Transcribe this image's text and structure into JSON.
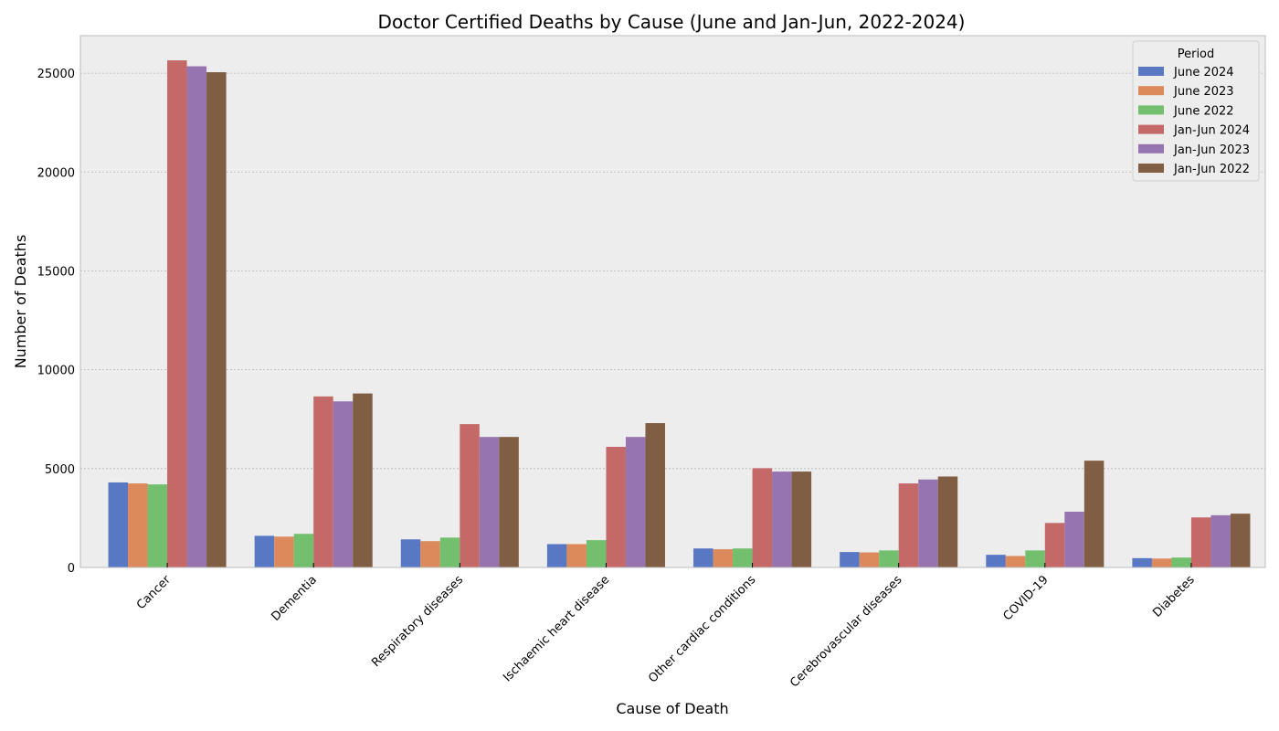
{
  "chart_data": {
    "type": "bar",
    "title": "Doctor Certified Deaths by Cause (June and Jan-Jun, 2022-2024)",
    "xlabel": "Cause of Death",
    "ylabel": "Number of Deaths",
    "ylim": [
      0,
      26900
    ],
    "yticks": [
      0,
      5000,
      10000,
      15000,
      20000,
      25000
    ],
    "grid": true,
    "legend": {
      "title": "Period",
      "position": "top-right"
    },
    "categories": [
      "Cancer",
      "Dementia",
      "Respiratory diseases",
      "Ischaemic heart disease",
      "Other cardiac conditions",
      "Cerebrovascular diseases",
      "COVID-19",
      "Diabetes"
    ],
    "series": [
      {
        "name": "June 2024",
        "color": "#5878c4",
        "values": [
          4300,
          1600,
          1420,
          1180,
          960,
          780,
          640,
          470
        ]
      },
      {
        "name": "June 2023",
        "color": "#dc8a5c",
        "values": [
          4250,
          1560,
          1330,
          1180,
          920,
          760,
          580,
          450
        ]
      },
      {
        "name": "June 2022",
        "color": "#72c06e",
        "values": [
          4200,
          1700,
          1510,
          1380,
          960,
          860,
          860,
          500
        ]
      },
      {
        "name": "Jan-Jun 2024",
        "color": "#c46868",
        "values": [
          25650,
          8650,
          7250,
          6100,
          5020,
          4250,
          2250,
          2530
        ]
      },
      {
        "name": "Jan-Jun 2023",
        "color": "#9674b0",
        "values": [
          25350,
          8400,
          6600,
          6600,
          4850,
          4450,
          2820,
          2640
        ]
      },
      {
        "name": "Jan-Jun 2022",
        "color": "#805e44",
        "values": [
          25050,
          8800,
          6600,
          7300,
          4850,
          4600,
          5400,
          2720
        ]
      }
    ],
    "colors": {
      "plot_background": "#ededed",
      "grid": "#b8b8b8",
      "frame": "#bcbcbc"
    }
  }
}
